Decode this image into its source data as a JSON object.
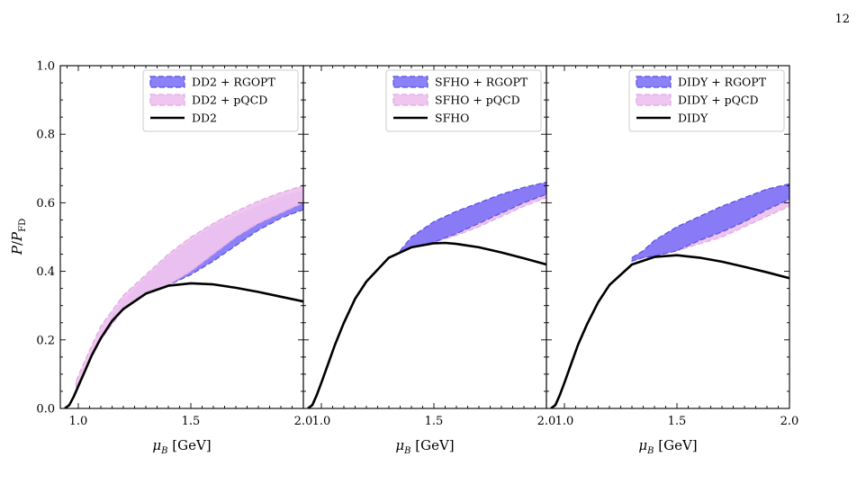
{
  "page_number": "12",
  "colors": {
    "rgopt": "#7b6ff7",
    "rgopt_edge": "#5a4fe0",
    "pqcd": "#eec3ee",
    "pqcd_edge": "#e0a8e6",
    "eos": "#000000"
  },
  "chart_data": [
    {
      "type": "area",
      "panel": "left",
      "xlabel": "μ_B [GeV]",
      "ylabel": "P/P_FD",
      "xlim": [
        0.92,
        2.0
      ],
      "ylim": [
        0.0,
        1.0
      ],
      "x_ticks": [
        "1.0",
        "1.5",
        "2.0"
      ],
      "y_ticks": [
        "0.0",
        "0.2",
        "0.4",
        "0.6",
        "0.8",
        "1.0"
      ],
      "legend_position": "top-right",
      "legend": [
        "DD2 + RGOPT",
        "DD2 + pQCD",
        "DD2"
      ],
      "series": [
        {
          "name": "DD2",
          "kind": "line",
          "x": [
            0.94,
            0.96,
            0.98,
            1.0,
            1.03,
            1.06,
            1.1,
            1.15,
            1.2,
            1.3,
            1.4,
            1.5,
            1.6,
            1.7,
            1.8,
            1.9,
            2.0
          ],
          "y": [
            0.0,
            0.01,
            0.035,
            0.065,
            0.11,
            0.155,
            0.205,
            0.255,
            0.29,
            0.335,
            0.358,
            0.365,
            0.362,
            0.352,
            0.34,
            0.326,
            0.312
          ]
        },
        {
          "name": "DD2 + RGOPT",
          "kind": "band",
          "x": [
            1.15,
            1.2,
            1.3,
            1.4,
            1.5,
            1.6,
            1.7,
            1.8,
            1.9,
            2.0
          ],
          "lower": [
            0.26,
            0.29,
            0.335,
            0.36,
            0.39,
            0.43,
            0.475,
            0.52,
            0.555,
            0.58
          ],
          "upper": [
            0.27,
            0.31,
            0.38,
            0.44,
            0.49,
            0.53,
            0.56,
            0.59,
            0.615,
            0.635
          ]
        },
        {
          "name": "DD2 + pQCD",
          "kind": "band",
          "x": [
            0.99,
            1.05,
            1.1,
            1.2,
            1.3,
            1.4,
            1.5,
            1.6,
            1.7,
            1.8,
            1.9,
            2.0
          ],
          "lower": [
            0.06,
            0.14,
            0.2,
            0.29,
            0.335,
            0.36,
            0.4,
            0.45,
            0.5,
            0.54,
            0.57,
            0.6
          ],
          "upper": [
            0.08,
            0.17,
            0.24,
            0.33,
            0.39,
            0.45,
            0.5,
            0.54,
            0.575,
            0.605,
            0.63,
            0.65
          ]
        }
      ]
    },
    {
      "type": "area",
      "panel": "middle",
      "xlabel": "μ_B [GeV]",
      "xlim": [
        0.92,
        2.0
      ],
      "ylim": [
        0.0,
        1.0
      ],
      "x_ticks": [
        "1.0",
        "1.5",
        "2.0"
      ],
      "legend_position": "top-right",
      "legend": [
        "SFHO + RGOPT",
        "SFHO + pQCD",
        "SFHO"
      ],
      "series": [
        {
          "name": "SFHO",
          "kind": "line",
          "x": [
            0.94,
            0.96,
            0.98,
            1.0,
            1.03,
            1.06,
            1.1,
            1.15,
            1.2,
            1.3,
            1.4,
            1.5,
            1.55,
            1.6,
            1.7,
            1.8,
            1.9,
            2.0
          ],
          "y": [
            0.0,
            0.01,
            0.04,
            0.075,
            0.13,
            0.185,
            0.25,
            0.32,
            0.37,
            0.44,
            0.47,
            0.482,
            0.483,
            0.48,
            0.47,
            0.455,
            0.438,
            0.42
          ]
        },
        {
          "name": "SFHO + pQCD",
          "kind": "band",
          "x": [
            1.35,
            1.4,
            1.5,
            1.6,
            1.7,
            1.8,
            1.9,
            2.0
          ],
          "lower": [
            0.455,
            0.47,
            0.485,
            0.505,
            0.53,
            0.56,
            0.59,
            0.615
          ],
          "upper": [
            0.46,
            0.5,
            0.545,
            0.575,
            0.6,
            0.625,
            0.645,
            0.66
          ]
        },
        {
          "name": "SFHO + RGOPT",
          "kind": "band",
          "x": [
            1.35,
            1.4,
            1.5,
            1.6,
            1.7,
            1.8,
            1.9,
            2.0
          ],
          "lower": [
            0.455,
            0.47,
            0.485,
            0.51,
            0.54,
            0.57,
            0.6,
            0.625
          ],
          "upper": [
            0.46,
            0.5,
            0.545,
            0.575,
            0.6,
            0.625,
            0.645,
            0.66
          ]
        }
      ]
    },
    {
      "type": "area",
      "panel": "right",
      "xlabel": "μ_B [GeV]",
      "xlim": [
        0.92,
        2.0
      ],
      "ylim": [
        0.0,
        1.0
      ],
      "x_ticks": [
        "1.0",
        "1.5",
        "2.0"
      ],
      "legend_position": "top-right",
      "legend": [
        "DIDY + RGOPT",
        "DIDY + pQCD",
        "DIDY"
      ],
      "series": [
        {
          "name": "DIDY",
          "kind": "line",
          "x": [
            0.94,
            0.96,
            0.98,
            1.0,
            1.03,
            1.06,
            1.1,
            1.15,
            1.2,
            1.3,
            1.4,
            1.5,
            1.6,
            1.7,
            1.8,
            1.9,
            2.0
          ],
          "y": [
            0.0,
            0.01,
            0.04,
            0.075,
            0.13,
            0.185,
            0.245,
            0.31,
            0.36,
            0.42,
            0.442,
            0.447,
            0.44,
            0.428,
            0.413,
            0.397,
            0.38
          ]
        },
        {
          "name": "DIDY + pQCD",
          "kind": "band",
          "x": [
            1.3,
            1.35,
            1.4,
            1.5,
            1.6,
            1.7,
            1.8,
            1.9,
            2.0
          ],
          "lower": [
            0.43,
            0.44,
            0.445,
            0.46,
            0.48,
            0.5,
            0.53,
            0.56,
            0.59
          ],
          "upper": [
            0.44,
            0.46,
            0.49,
            0.53,
            0.56,
            0.59,
            0.615,
            0.64,
            0.655
          ]
        },
        {
          "name": "DIDY + RGOPT",
          "kind": "band",
          "x": [
            1.3,
            1.35,
            1.4,
            1.5,
            1.6,
            1.7,
            1.8,
            1.9,
            2.0
          ],
          "lower": [
            0.43,
            0.44,
            0.445,
            0.46,
            0.49,
            0.515,
            0.545,
            0.58,
            0.61
          ],
          "upper": [
            0.44,
            0.46,
            0.49,
            0.53,
            0.56,
            0.59,
            0.615,
            0.64,
            0.655
          ]
        }
      ]
    }
  ]
}
